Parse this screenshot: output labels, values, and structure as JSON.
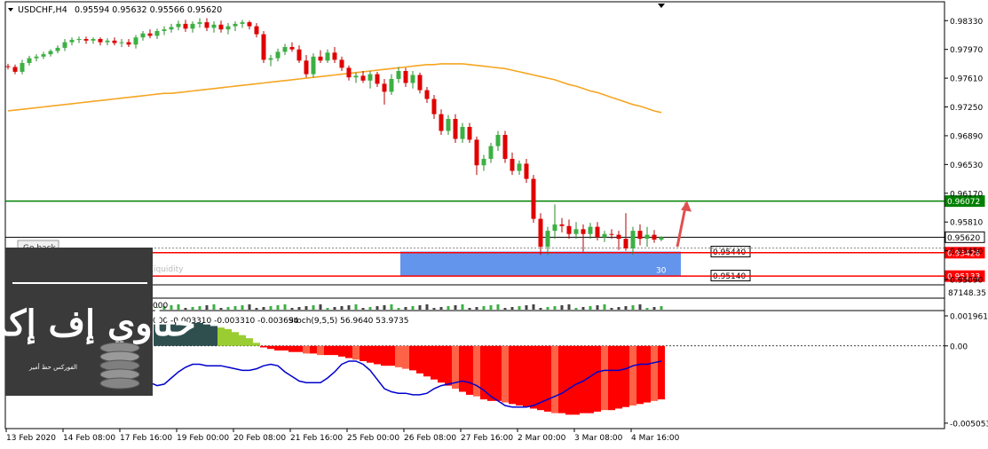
{
  "header": {
    "symbol": "USDCHF,H4",
    "ohlc": "0.95594 0.95632 0.95566 0.95620"
  },
  "price_axis": {
    "ticks": [
      "0.98330",
      "0.97970",
      "0.97610",
      "0.97250",
      "0.96890",
      "0.96530",
      "0.96170",
      "0.95810",
      "0.95450",
      "0.95090"
    ],
    "tick_values": [
      0.9833,
      0.9797,
      0.9761,
      0.9725,
      0.9689,
      0.9653,
      0.9617,
      0.9581,
      0.9545,
      0.9509
    ],
    "ylim": [
      0.95035,
      0.98555
    ]
  },
  "levels": {
    "green_line": {
      "label": "0.96072",
      "value": 0.96072,
      "color": "#008000"
    },
    "current_price": {
      "label": "0.95620",
      "value": 0.9562,
      "color": "#000000"
    },
    "red_line_upper": {
      "label": "0.95426",
      "value": 0.95426,
      "color": "#ff0000"
    },
    "red_line_lower": {
      "label": "0.95133",
      "value": 0.95133,
      "color": "#ff0000"
    },
    "zone_top_label": "0.95440",
    "zone_bottom_label": "0.95140",
    "zone_count": "30",
    "zone_color": "#6495ed",
    "arrow_color": "#e05050"
  },
  "ma_color": "#f5a623",
  "volume_label": "87148.35",
  "volume_zero_label": "000",
  "indicator": {
    "caption": "000 -0.003310 -0.003310 -0.003694",
    "stoch_caption": "Stoch(9,5,5) 56.9640 53.9735",
    "ticks": [
      "0.001961",
      "0.00",
      "-0.005053"
    ],
    "tick_values": [
      0.001961,
      0.0,
      -0.005053
    ],
    "ylim": [
      -0.00535,
      0.00225
    ],
    "stoch_color": "#0000cd"
  },
  "button": {
    "label": "Go back"
  },
  "overlay_text": "Liquidity",
  "logo": {
    "arabic": "حناوي إف إكس",
    "tagline": "الفوركس حط أمير"
  },
  "x_axis": {
    "labels": [
      "13 Feb 2020",
      "14 Feb 08:00",
      "17 Feb 16:00",
      "19 Feb 00:00",
      "20 Feb 08:00",
      "21 Feb 16:00",
      "25 Feb 00:00",
      "26 Feb 08:00",
      "27 Feb 16:00",
      "2 Mar 00:00",
      "3 Mar 08:00",
      "4 Mar 16:00"
    ],
    "label_bar_index": [
      0,
      8,
      16,
      24,
      32,
      40,
      48,
      56,
      64,
      72,
      80,
      88
    ]
  },
  "chart_data": {
    "type": "candlestick",
    "title": "USDCHF,H4",
    "bar_count": 93,
    "ohlc": [
      [
        0.9776,
        0.9779,
        0.9772,
        0.9775
      ],
      [
        0.9775,
        0.9778,
        0.9766,
        0.9769
      ],
      [
        0.9769,
        0.9784,
        0.9766,
        0.978
      ],
      [
        0.978,
        0.9789,
        0.9777,
        0.9786
      ],
      [
        0.9786,
        0.9791,
        0.9782,
        0.9788
      ],
      [
        0.9788,
        0.9794,
        0.9785,
        0.9791
      ],
      [
        0.9791,
        0.9797,
        0.9788,
        0.9795
      ],
      [
        0.9795,
        0.9802,
        0.9792,
        0.9799
      ],
      [
        0.9799,
        0.981,
        0.9795,
        0.9806
      ],
      [
        0.9806,
        0.9812,
        0.9802,
        0.9809
      ],
      [
        0.9809,
        0.9813,
        0.9805,
        0.981
      ],
      [
        0.981,
        0.9813,
        0.9804,
        0.9808
      ],
      [
        0.9808,
        0.9812,
        0.9804,
        0.981
      ],
      [
        0.981,
        0.9812,
        0.9802,
        0.9806
      ],
      [
        0.9806,
        0.9811,
        0.9802,
        0.9808
      ],
      [
        0.9808,
        0.9812,
        0.9802,
        0.9805
      ],
      [
        0.9805,
        0.981,
        0.98,
        0.9806
      ],
      [
        0.9806,
        0.981,
        0.98,
        0.9803
      ],
      [
        0.9803,
        0.9815,
        0.9798,
        0.9812
      ],
      [
        0.9812,
        0.982,
        0.9808,
        0.9817
      ],
      [
        0.9817,
        0.9822,
        0.9811,
        0.9814
      ],
      [
        0.9814,
        0.9823,
        0.981,
        0.982
      ],
      [
        0.982,
        0.9826,
        0.9815,
        0.9822
      ],
      [
        0.9822,
        0.9829,
        0.9818,
        0.9825
      ],
      [
        0.9825,
        0.9833,
        0.9821,
        0.9829
      ],
      [
        0.9829,
        0.9834,
        0.9819,
        0.9823
      ],
      [
        0.9823,
        0.9832,
        0.9818,
        0.9829
      ],
      [
        0.9829,
        0.9836,
        0.9824,
        0.9831
      ],
      [
        0.9831,
        0.9836,
        0.982,
        0.9824
      ],
      [
        0.9824,
        0.9832,
        0.9818,
        0.9828
      ],
      [
        0.9828,
        0.9833,
        0.9818,
        0.9822
      ],
      [
        0.9822,
        0.983,
        0.9816,
        0.9826
      ],
      [
        0.9826,
        0.9832,
        0.982,
        0.9829
      ],
      [
        0.9829,
        0.9834,
        0.9824,
        0.9831
      ],
      [
        0.9831,
        0.9833,
        0.9822,
        0.9826
      ],
      [
        0.9826,
        0.983,
        0.9812,
        0.9816
      ],
      [
        0.9816,
        0.982,
        0.978,
        0.9784
      ],
      [
        0.9784,
        0.979,
        0.9776,
        0.9786
      ],
      [
        0.9786,
        0.9798,
        0.9782,
        0.9794
      ],
      [
        0.9794,
        0.9804,
        0.979,
        0.98
      ],
      [
        0.98,
        0.9806,
        0.9794,
        0.9797
      ],
      [
        0.9797,
        0.9802,
        0.978,
        0.9783
      ],
      [
        0.9783,
        0.979,
        0.9762,
        0.9766
      ],
      [
        0.9766,
        0.9792,
        0.9762,
        0.9788
      ],
      [
        0.9788,
        0.9796,
        0.978,
        0.9783
      ],
      [
        0.9783,
        0.9797,
        0.978,
        0.9793
      ],
      [
        0.9793,
        0.98,
        0.978,
        0.9784
      ],
      [
        0.9784,
        0.9788,
        0.977,
        0.9774
      ],
      [
        0.9774,
        0.9777,
        0.9758,
        0.9762
      ],
      [
        0.9762,
        0.9768,
        0.9755,
        0.9764
      ],
      [
        0.9764,
        0.977,
        0.9755,
        0.9758
      ],
      [
        0.9758,
        0.977,
        0.9748,
        0.9766
      ],
      [
        0.9766,
        0.9769,
        0.975,
        0.9754
      ],
      [
        0.9754,
        0.976,
        0.9728,
        0.9744
      ],
      [
        0.9744,
        0.9766,
        0.974,
        0.976
      ],
      [
        0.976,
        0.9775,
        0.9755,
        0.977
      ],
      [
        0.977,
        0.9774,
        0.975,
        0.9755
      ],
      [
        0.9755,
        0.977,
        0.9748,
        0.9765
      ],
      [
        0.9765,
        0.9768,
        0.9742,
        0.9746
      ],
      [
        0.9746,
        0.975,
        0.973,
        0.9735
      ],
      [
        0.9735,
        0.974,
        0.971,
        0.9716
      ],
      [
        0.9716,
        0.9722,
        0.969,
        0.9695
      ],
      [
        0.9695,
        0.9715,
        0.969,
        0.971
      ],
      [
        0.971,
        0.9716,
        0.968,
        0.9685
      ],
      [
        0.9685,
        0.9705,
        0.968,
        0.97
      ],
      [
        0.97,
        0.9705,
        0.968,
        0.9684
      ],
      [
        0.9684,
        0.9688,
        0.964,
        0.9652
      ],
      [
        0.9652,
        0.9665,
        0.9645,
        0.966
      ],
      [
        0.966,
        0.968,
        0.9655,
        0.9676
      ],
      [
        0.9676,
        0.9695,
        0.967,
        0.969
      ],
      [
        0.969,
        0.9695,
        0.9655,
        0.966
      ],
      [
        0.966,
        0.9668,
        0.964,
        0.9645
      ],
      [
        0.9645,
        0.9658,
        0.964,
        0.9654
      ],
      [
        0.9654,
        0.966,
        0.963,
        0.9635
      ],
      [
        0.9635,
        0.964,
        0.958,
        0.9585
      ],
      [
        0.9585,
        0.9592,
        0.954,
        0.955
      ],
      [
        0.955,
        0.9575,
        0.954,
        0.957
      ],
      [
        0.957,
        0.9603,
        0.956,
        0.9578
      ],
      [
        0.9578,
        0.9586,
        0.9568,
        0.9576
      ],
      [
        0.9576,
        0.9584,
        0.956,
        0.9566
      ],
      [
        0.9566,
        0.9581,
        0.956,
        0.9572
      ],
      [
        0.9572,
        0.9578,
        0.9544,
        0.9566
      ],
      [
        0.9566,
        0.958,
        0.956,
        0.9575
      ],
      [
        0.9575,
        0.9581,
        0.9558,
        0.9562
      ],
      [
        0.9562,
        0.957,
        0.9556,
        0.9566
      ],
      [
        0.9566,
        0.9572,
        0.956,
        0.9565
      ],
      [
        0.9565,
        0.957,
        0.9546,
        0.956
      ],
      [
        0.956,
        0.9592,
        0.9545,
        0.9548
      ],
      [
        0.9548,
        0.9575,
        0.954,
        0.957
      ],
      [
        0.957,
        0.9578,
        0.9552,
        0.956
      ],
      [
        0.956,
        0.9575,
        0.955,
        0.9565
      ],
      [
        0.9565,
        0.9571,
        0.9555,
        0.9559
      ],
      [
        0.9559,
        0.9563,
        0.9557,
        0.9562
      ]
    ],
    "ma_series": [
      0.972,
      0.9721,
      0.9722,
      0.9723,
      0.9724,
      0.9725,
      0.9726,
      0.9727,
      0.9728,
      0.9729,
      0.973,
      0.9731,
      0.9732,
      0.9733,
      0.9734,
      0.9735,
      0.9736,
      0.9737,
      0.9738,
      0.9739,
      0.974,
      0.9741,
      0.9742,
      0.9742,
      0.9743,
      0.9744,
      0.9745,
      0.9746,
      0.9747,
      0.9748,
      0.9749,
      0.975,
      0.9751,
      0.9752,
      0.9753,
      0.9754,
      0.9755,
      0.9756,
      0.9757,
      0.9758,
      0.9759,
      0.976,
      0.9761,
      0.9762,
      0.9763,
      0.9764,
      0.9765,
      0.9766,
      0.9767,
      0.9768,
      0.9769,
      0.977,
      0.9771,
      0.9772,
      0.9773,
      0.9774,
      0.9775,
      0.9776,
      0.9777,
      0.9778,
      0.9778,
      0.9779,
      0.9779,
      0.9779,
      0.9779,
      0.9778,
      0.9777,
      0.9776,
      0.9775,
      0.9774,
      0.9773,
      0.9771,
      0.9769,
      0.9767,
      0.9765,
      0.9763,
      0.9761,
      0.9759,
      0.9756,
      0.9753,
      0.9751,
      0.9748,
      0.9745,
      0.9743,
      0.974,
      0.9737,
      0.9734,
      0.9731,
      0.9728,
      0.9726,
      0.9723,
      0.972,
      0.9718
    ],
    "histogram": [
      0.0008,
      0.0009,
      0.001,
      0.0011,
      0.0011,
      0.0012,
      0.0012,
      0.0013,
      0.0013,
      0.0013,
      0.0014,
      0.0014,
      0.0014,
      0.0014,
      0.0014,
      0.0014,
      0.0014,
      0.0014,
      0.0013,
      0.0013,
      0.0013,
      0.0014,
      0.0014,
      0.0014,
      0.0015,
      0.0015,
      0.0015,
      0.0015,
      0.0014,
      0.0013,
      0.0012,
      0.0011,
      0.0009,
      0.0007,
      0.0005,
      0.0002,
      -0.0001,
      -0.0002,
      -0.0003,
      -0.0003,
      -0.0004,
      -0.0004,
      -0.0005,
      -0.0005,
      -0.0006,
      -0.0006,
      -0.0006,
      -0.0007,
      -0.0008,
      -0.0009,
      -0.001,
      -0.0011,
      -0.0012,
      -0.0013,
      -0.0013,
      -0.0014,
      -0.0015,
      -0.0016,
      -0.0018,
      -0.002,
      -0.0022,
      -0.0024,
      -0.0026,
      -0.0028,
      -0.003,
      -0.0032,
      -0.0033,
      -0.0035,
      -0.0036,
      -0.0036,
      -0.0037,
      -0.0038,
      -0.0039,
      -0.004,
      -0.0041,
      -0.0042,
      -0.0043,
      -0.0044,
      -0.0044,
      -0.0045,
      -0.0045,
      -0.0044,
      -0.0044,
      -0.0043,
      -0.0042,
      -0.0042,
      -0.0041,
      -0.004,
      -0.0039,
      -0.0038,
      -0.0037,
      -0.0036,
      -0.0035
    ],
    "stoch_series": [
      -0.0004,
      -0.0002,
      0.0,
      0.0003,
      0.0006,
      0.0008,
      0.001,
      0.0012,
      0.0014,
      0.0015,
      0.0016,
      0.0016,
      0.0015,
      0.0012,
      0.0008,
      0.0002,
      -0.0004,
      -0.001,
      -0.0015,
      -0.002,
      -0.0024,
      -0.0026,
      -0.0025,
      -0.0021,
      -0.0017,
      -0.0014,
      -0.0012,
      -0.0012,
      -0.0013,
      -0.0013,
      -0.0013,
      -0.0014,
      -0.0015,
      -0.0016,
      -0.0016,
      -0.0015,
      -0.0013,
      -0.0012,
      -0.0013,
      -0.0017,
      -0.002,
      -0.0023,
      -0.0024,
      -0.0024,
      -0.0024,
      -0.0021,
      -0.0017,
      -0.0012,
      -0.001,
      -0.001,
      -0.0012,
      -0.0016,
      -0.0022,
      -0.0028,
      -0.003,
      -0.0031,
      -0.0031,
      -0.0032,
      -0.0032,
      -0.0031,
      -0.0028,
      -0.0026,
      -0.0025,
      -0.0024,
      -0.0023,
      -0.0024,
      -0.0026,
      -0.0029,
      -0.0033,
      -0.0036,
      -0.0039,
      -0.004,
      -0.004,
      -0.004,
      -0.0039,
      -0.0037,
      -0.0035,
      -0.0033,
      -0.0031,
      -0.0028,
      -0.0025,
      -0.0023,
      -0.002,
      -0.0017,
      -0.0016,
      -0.0016,
      -0.0016,
      -0.0015,
      -0.0013,
      -0.0012,
      -0.0012,
      -0.0011,
      -0.001
    ]
  }
}
